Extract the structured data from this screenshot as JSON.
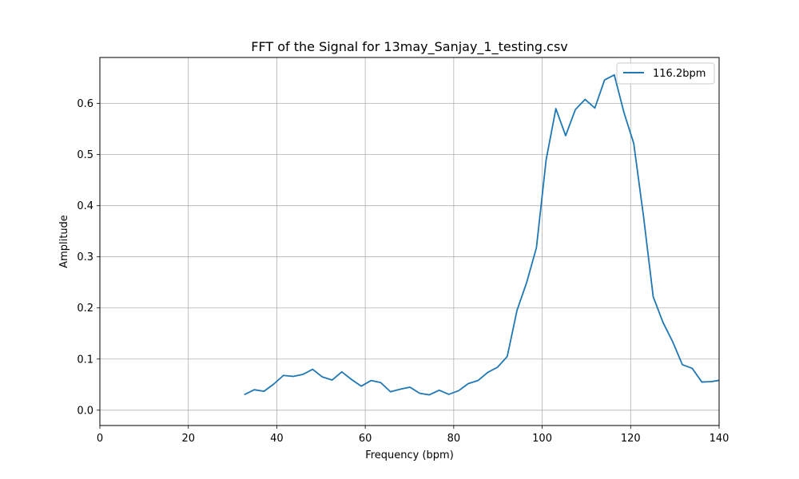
{
  "chart_data": {
    "type": "line",
    "title": "FFT of the Signal for 13may_Sanjay_1_testing.csv",
    "xlabel": "Frequency (bpm)",
    "ylabel": "Amplitude",
    "xlim": [
      0,
      140
    ],
    "ylim": [
      -0.03,
      0.69
    ],
    "x_ticks": [
      0,
      20,
      40,
      60,
      80,
      100,
      120,
      140
    ],
    "y_ticks": [
      0.0,
      0.1,
      0.2,
      0.3,
      0.4,
      0.5,
      0.6
    ],
    "x_tick_labels": [
      "0",
      "20",
      "40",
      "60",
      "80",
      "100",
      "120",
      "140"
    ],
    "y_tick_labels": [
      "0.0",
      "0.1",
      "0.2",
      "0.3",
      "0.4",
      "0.5",
      "0.6"
    ],
    "grid": true,
    "legend_position": "top-right",
    "series": [
      {
        "name": "116.2bpm",
        "color": "#1f77b4",
        "x": [
          32.8,
          34.9,
          37.1,
          39.3,
          41.5,
          43.7,
          45.9,
          48.1,
          50.3,
          52.5,
          54.7,
          56.9,
          59.1,
          61.3,
          63.5,
          65.7,
          67.9,
          70.1,
          72.3,
          74.5,
          76.7,
          78.9,
          81.1,
          83.3,
          85.5,
          87.7,
          89.9,
          92.1,
          94.3,
          96.5,
          98.7,
          100.9,
          103.1,
          105.3,
          107.5,
          109.7,
          111.9,
          114.1,
          116.3,
          118.5,
          120.7,
          122.9,
          125.1,
          127.3,
          129.5,
          131.7,
          133.9,
          136.1,
          138.3,
          140.5
        ],
        "y": [
          0.031,
          0.04,
          0.037,
          0.051,
          0.068,
          0.066,
          0.07,
          0.08,
          0.065,
          0.059,
          0.075,
          0.06,
          0.047,
          0.058,
          0.054,
          0.036,
          0.041,
          0.045,
          0.033,
          0.03,
          0.039,
          0.031,
          0.038,
          0.052,
          0.058,
          0.074,
          0.084,
          0.105,
          0.195,
          0.25,
          0.318,
          0.49,
          0.59,
          0.537,
          0.588,
          0.608,
          0.591,
          0.646,
          0.656,
          0.582,
          0.522,
          0.38,
          0.222,
          0.172,
          0.134,
          0.089,
          0.082,
          0.055,
          0.056,
          0.059
        ]
      }
    ]
  }
}
